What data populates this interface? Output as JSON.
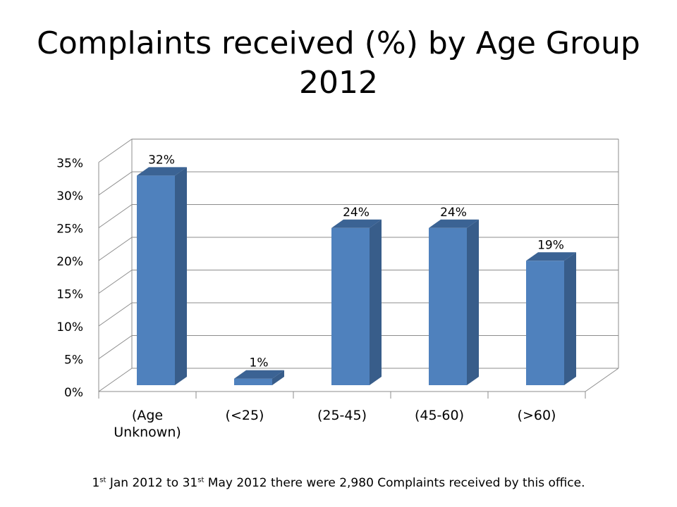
{
  "slide": {
    "title_line1": "Complaints received (%) by Age Group",
    "title_line2": "2012"
  },
  "footnote": {
    "p1": "1",
    "sup1": "st",
    "p2": " Jan 2012 to 31",
    "sup2": "st",
    "p3": " May 2012 there were 2,980 Complaints received by this office."
  },
  "colors": {
    "bar_front": "#4f81bd",
    "bar_side": "#385d8a",
    "bar_top": "#3b6394",
    "grid": "#8c8c8c",
    "text": "#000000"
  },
  "chart_data": {
    "type": "bar",
    "style": "3d-column",
    "categories": [
      "(Age Unknown)",
      "(<25)",
      "(25-45)",
      "(45-60)",
      "(>60)"
    ],
    "category_lines": [
      [
        "(Age",
        "Unknown)"
      ],
      [
        "(<25)"
      ],
      [
        "(25-45)"
      ],
      [
        "(45-60)"
      ],
      [
        "(>60)"
      ]
    ],
    "values": [
      32,
      1,
      24,
      24,
      19
    ],
    "value_labels": [
      "32%",
      "1%",
      "24%",
      "24%",
      "19%"
    ],
    "yticks": [
      0,
      5,
      10,
      15,
      20,
      25,
      30,
      35
    ],
    "ytick_labels": [
      "0%",
      "5%",
      "10%",
      "15%",
      "20%",
      "25%",
      "30%",
      "35%"
    ],
    "ylim": [
      0,
      35
    ],
    "grid": true,
    "legend": false
  }
}
